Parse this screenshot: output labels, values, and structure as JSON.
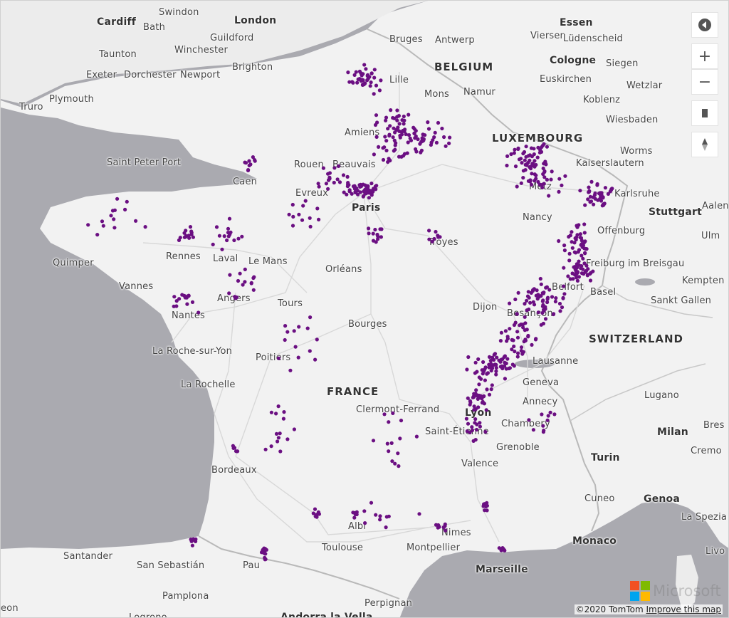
{
  "map": {
    "countries": [
      {
        "name": "BELGIUM"
      },
      {
        "name": "LUXEMBOURG"
      },
      {
        "name": "FRANCE"
      },
      {
        "name": "SWITZERLAND"
      }
    ],
    "cities": [
      {
        "name": "Cardiff"
      },
      {
        "name": "Swindon"
      },
      {
        "name": "London"
      },
      {
        "name": "Bath"
      },
      {
        "name": "Guildford"
      },
      {
        "name": "Taunton"
      },
      {
        "name": "Winchester"
      },
      {
        "name": "Exeter"
      },
      {
        "name": "Dorchester"
      },
      {
        "name": "Newport"
      },
      {
        "name": "Brighton"
      },
      {
        "name": "Plymouth"
      },
      {
        "name": "Truro"
      },
      {
        "name": "Bruges"
      },
      {
        "name": "Antwerp"
      },
      {
        "name": "Essen"
      },
      {
        "name": "Viersen"
      },
      {
        "name": "Lüdenscheid"
      },
      {
        "name": "Lille"
      },
      {
        "name": "Mons"
      },
      {
        "name": "Namur"
      },
      {
        "name": "Cologne"
      },
      {
        "name": "Siegen"
      },
      {
        "name": "Euskirchen"
      },
      {
        "name": "Wetzlar"
      },
      {
        "name": "Koblenz"
      },
      {
        "name": "Wiesbaden"
      },
      {
        "name": "Worms"
      },
      {
        "name": "Kaiserslautern"
      },
      {
        "name": "Saint Peter Port"
      },
      {
        "name": "Amiens"
      },
      {
        "name": "Rouen"
      },
      {
        "name": "Beauvais"
      },
      {
        "name": "Caen"
      },
      {
        "name": "Evreux"
      },
      {
        "name": "Paris"
      },
      {
        "name": "Metz"
      },
      {
        "name": "Karlsruhe"
      },
      {
        "name": "Stuttgart"
      },
      {
        "name": "Aalen"
      },
      {
        "name": "Nancy"
      },
      {
        "name": "Offenburg"
      },
      {
        "name": "Ulm"
      },
      {
        "name": "Quimper"
      },
      {
        "name": "Rennes"
      },
      {
        "name": "Laval"
      },
      {
        "name": "Le Mans"
      },
      {
        "name": "Troyes"
      },
      {
        "name": "Freiburg im Breisgau"
      },
      {
        "name": "Kempten"
      },
      {
        "name": "Vannes"
      },
      {
        "name": "Orléans"
      },
      {
        "name": "Belfort"
      },
      {
        "name": "Basel"
      },
      {
        "name": "Sankt Gallen"
      },
      {
        "name": "Angers"
      },
      {
        "name": "Tours"
      },
      {
        "name": "Dijon"
      },
      {
        "name": "Nantes"
      },
      {
        "name": "Besançon"
      },
      {
        "name": "Bourges"
      },
      {
        "name": "La Roche-sur-Yon"
      },
      {
        "name": "Poitiers"
      },
      {
        "name": "Lausanne"
      },
      {
        "name": "La Rochelle"
      },
      {
        "name": "Geneva"
      },
      {
        "name": "Lugano"
      },
      {
        "name": "Annecy"
      },
      {
        "name": "Clermont-Ferrand"
      },
      {
        "name": "Lyon"
      },
      {
        "name": "Chambery"
      },
      {
        "name": "Bres"
      },
      {
        "name": "Saint-Étienne"
      },
      {
        "name": "Milan"
      },
      {
        "name": "Grenoble"
      },
      {
        "name": "Cremo"
      },
      {
        "name": "Turin"
      },
      {
        "name": "Valence"
      },
      {
        "name": "Bordeaux"
      },
      {
        "name": "Cuneo"
      },
      {
        "name": "Genoa"
      },
      {
        "name": "La Spezia"
      },
      {
        "name": "Albi"
      },
      {
        "name": "Nimes"
      },
      {
        "name": "Monaco"
      },
      {
        "name": "Santander"
      },
      {
        "name": "San Sebastián"
      },
      {
        "name": "Toulouse"
      },
      {
        "name": "Montpellier"
      },
      {
        "name": "Livo"
      },
      {
        "name": "Pau"
      },
      {
        "name": "Marseille"
      },
      {
        "name": "Pamplona"
      },
      {
        "name": "eon"
      },
      {
        "name": "Perpignan"
      },
      {
        "name": "Logrono"
      },
      {
        "name": "Andorra la Vella"
      }
    ]
  },
  "controls": {
    "style_icon": "map-style-icon",
    "zoom_in": "+",
    "zoom_out": "−",
    "pitch_icon": "pitch-icon",
    "compass_icon": "compass-icon"
  },
  "attribution": {
    "copyright": "©2020 TomTom",
    "improve_link": "Improve this map",
    "logo_text": "Microsoft",
    "logo_colors": [
      "#f25022",
      "#7fba00",
      "#00a4ef",
      "#ffb900"
    ]
  },
  "colors": {
    "water": "#aaaab0",
    "land": "#f2f2f2",
    "points": "#6b0f82"
  }
}
